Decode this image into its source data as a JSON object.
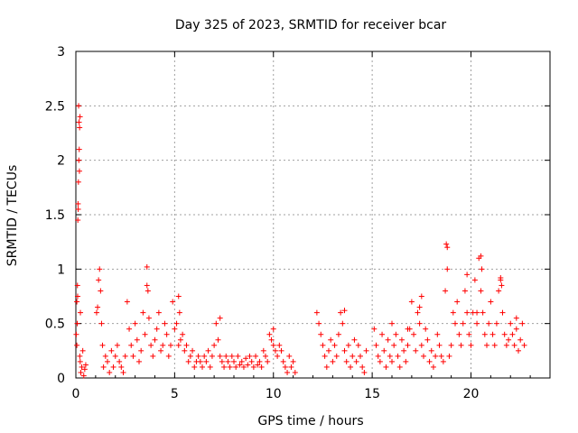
{
  "chart_data": {
    "type": "scatter",
    "title": "Day 325 of 2023, SRMTID for receiver bcar",
    "xlabel": "GPS time / hours",
    "ylabel": "SRMTID / TECUs",
    "xlim": [
      0,
      24
    ],
    "ylim": [
      0,
      3
    ],
    "xticks": [
      0,
      5,
      10,
      15,
      20
    ],
    "xtick_labels": [
      "0",
      "5",
      "10",
      "15",
      "20"
    ],
    "yticks": [
      0,
      0.5,
      1,
      1.5,
      2,
      2.5,
      3
    ],
    "ytick_labels": [
      "0",
      "0.5",
      "1",
      "1.5",
      "2",
      "2.5",
      "3"
    ],
    "grid": true,
    "marker": "+",
    "color": "#ff0000",
    "series": [
      {
        "name": "SRMTID",
        "x": [
          0.02,
          0.05,
          0.08,
          0.1,
          0.12,
          0.14,
          0.16,
          0.18,
          0.2,
          0.22,
          0.25,
          0.3,
          0.35,
          0.4,
          0.45,
          0.5,
          0.05,
          0.07,
          0.09,
          0.11,
          0.13,
          0.15,
          0.17,
          0.19,
          0.21,
          0.23,
          1.05,
          1.1,
          1.15,
          1.2,
          1.25,
          1.3,
          1.35,
          1.4,
          1.5,
          1.6,
          1.7,
          1.8,
          1.9,
          2.0,
          2.1,
          2.2,
          2.3,
          2.4,
          2.5,
          2.6,
          2.7,
          2.8,
          2.9,
          3.0,
          3.1,
          3.2,
          3.3,
          3.4,
          3.5,
          3.6,
          3.7,
          3.8,
          3.9,
          4.0,
          4.1,
          4.2,
          4.3,
          4.4,
          4.5,
          4.6,
          4.7,
          4.8,
          4.9,
          5.0,
          5.1,
          5.2,
          5.3,
          5.4,
          5.5,
          5.6,
          5.7,
          5.8,
          5.9,
          6.0,
          6.1,
          6.2,
          6.3,
          6.4,
          6.5,
          6.6,
          6.7,
          6.8,
          6.9,
          7.0,
          7.1,
          7.2,
          7.3,
          7.4,
          7.5,
          7.6,
          7.7,
          7.8,
          7.9,
          8.0,
          8.1,
          8.2,
          8.3,
          8.4,
          8.5,
          8.6,
          8.7,
          8.8,
          8.9,
          9.0,
          9.1,
          9.2,
          9.3,
          9.4,
          9.5,
          9.6,
          9.7,
          9.8,
          9.9,
          10.0,
          10.1,
          10.2,
          10.3,
          10.4,
          10.5,
          10.6,
          10.7,
          10.8,
          10.9,
          11.0,
          11.1,
          12.2,
          12.3,
          12.4,
          12.5,
          12.6,
          12.7,
          12.8,
          12.9,
          13.0,
          13.1,
          13.2,
          13.3,
          13.4,
          13.5,
          13.6,
          13.7,
          13.8,
          13.9,
          14.0,
          14.1,
          14.2,
          14.3,
          14.4,
          14.5,
          14.6,
          14.7,
          15.1,
          15.2,
          15.3,
          15.4,
          15.5,
          15.6,
          15.7,
          15.8,
          15.9,
          16.0,
          16.1,
          16.2,
          16.3,
          16.4,
          16.5,
          16.6,
          16.7,
          16.8,
          16.9,
          17.0,
          17.1,
          17.2,
          17.3,
          17.4,
          17.5,
          17.6,
          17.7,
          17.8,
          17.9,
          18.0,
          18.1,
          18.2,
          18.3,
          18.4,
          18.5,
          18.6,
          18.7,
          18.8,
          18.9,
          19.0,
          19.1,
          19.2,
          19.3,
          19.4,
          19.5,
          19.6,
          19.7,
          19.8,
          19.9,
          20.0,
          20.1,
          20.2,
          20.3,
          20.4,
          20.5,
          20.6,
          20.7,
          20.8,
          20.9,
          21.0,
          21.1,
          21.2,
          21.3,
          21.4,
          21.5,
          21.6,
          21.7,
          21.8,
          21.9,
          22.0,
          22.1,
          22.2,
          22.3,
          22.4,
          22.5,
          22.6,
          22.7,
          18.75,
          18.8,
          20.5,
          20.55,
          21.5,
          21.55,
          3.6,
          3.65,
          5.2,
          5.25,
          7.3,
          10.0,
          13.6,
          16.0,
          16.8,
          17.4,
          17.5,
          19.8,
          20.3,
          22.3
        ],
        "y": [
          0.4,
          0.7,
          0.85,
          1.45,
          1.55,
          2.5,
          2.35,
          1.9,
          0.2,
          0.15,
          0.05,
          0.1,
          0.25,
          0.02,
          0.08,
          0.12,
          0.3,
          0.5,
          0.75,
          1.6,
          1.8,
          2.0,
          2.1,
          2.3,
          2.4,
          0.6,
          0.6,
          0.65,
          0.9,
          1.0,
          0.8,
          0.5,
          0.3,
          0.1,
          0.2,
          0.15,
          0.05,
          0.25,
          0.1,
          0.2,
          0.3,
          0.15,
          0.1,
          0.05,
          0.2,
          0.7,
          0.45,
          0.3,
          0.2,
          0.5,
          0.35,
          0.15,
          0.25,
          0.6,
          0.4,
          0.85,
          0.55,
          0.3,
          0.2,
          0.35,
          0.45,
          0.6,
          0.25,
          0.3,
          0.5,
          0.4,
          0.2,
          0.3,
          0.7,
          0.45,
          0.5,
          0.3,
          0.35,
          0.4,
          0.25,
          0.3,
          0.15,
          0.2,
          0.25,
          0.1,
          0.15,
          0.2,
          0.15,
          0.1,
          0.2,
          0.15,
          0.25,
          0.1,
          0.2,
          0.3,
          0.5,
          0.35,
          0.2,
          0.15,
          0.1,
          0.2,
          0.15,
          0.1,
          0.2,
          0.15,
          0.1,
          0.2,
          0.12,
          0.15,
          0.1,
          0.18,
          0.12,
          0.2,
          0.15,
          0.1,
          0.2,
          0.12,
          0.15,
          0.1,
          0.25,
          0.2,
          0.15,
          0.4,
          0.35,
          0.3,
          0.25,
          0.2,
          0.3,
          0.25,
          0.15,
          0.1,
          0.05,
          0.2,
          0.1,
          0.15,
          0.05,
          0.6,
          0.5,
          0.4,
          0.3,
          0.2,
          0.1,
          0.25,
          0.35,
          0.15,
          0.3,
          0.2,
          0.4,
          0.6,
          0.5,
          0.25,
          0.15,
          0.3,
          0.1,
          0.2,
          0.35,
          0.15,
          0.3,
          0.2,
          0.1,
          0.05,
          0.25,
          0.45,
          0.3,
          0.2,
          0.15,
          0.4,
          0.25,
          0.1,
          0.35,
          0.2,
          0.15,
          0.3,
          0.4,
          0.2,
          0.1,
          0.35,
          0.25,
          0.15,
          0.3,
          0.45,
          0.7,
          0.4,
          0.25,
          0.6,
          0.5,
          0.3,
          0.2,
          0.45,
          0.35,
          0.15,
          0.25,
          0.1,
          0.2,
          0.4,
          0.3,
          0.2,
          0.15,
          0.8,
          1.2,
          0.2,
          0.3,
          0.6,
          0.5,
          0.7,
          0.4,
          0.3,
          0.5,
          0.8,
          0.6,
          0.4,
          0.3,
          0.6,
          0.9,
          0.5,
          1.1,
          0.8,
          0.6,
          0.4,
          0.3,
          0.5,
          0.7,
          0.4,
          0.3,
          0.5,
          0.8,
          0.9,
          0.6,
          0.4,
          0.3,
          0.35,
          0.5,
          0.4,
          0.3,
          0.45,
          0.25,
          0.35,
          0.5,
          0.3,
          1.23,
          1.0,
          1.12,
          1.0,
          0.92,
          0.85,
          1.02,
          0.8,
          0.75,
          0.6,
          0.55,
          0.45,
          0.62,
          0.5,
          0.45,
          0.65,
          0.75,
          0.95,
          0.6,
          0.55
        ]
      }
    ]
  }
}
